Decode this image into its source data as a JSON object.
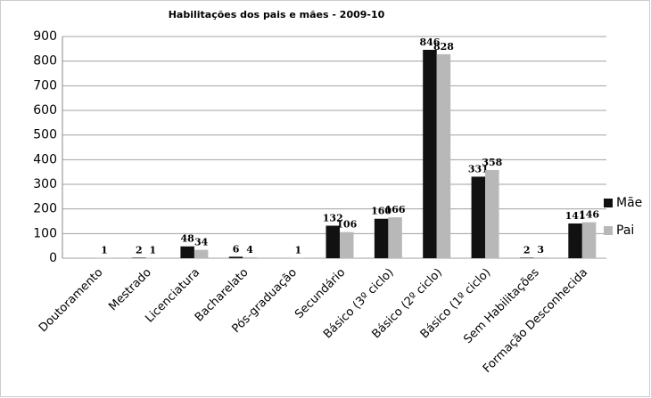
{
  "chart_data": {
    "type": "bar",
    "title": "Habilitações dos pais e mães - 2009-10",
    "categories": [
      "Doutoramento",
      "Mestrado",
      "Licenciatura",
      "Bacharelato",
      "Pós-graduação",
      "Secundário",
      "Básico (3º ciclo)",
      "Básico (2º ciclo)",
      "Básico (1º ciclo)",
      "Sem Habilitações",
      "Formação Desconhecida"
    ],
    "series": [
      {
        "name": "Mãe",
        "color": "#111111",
        "values": [
          null,
          2,
          48,
          6,
          null,
          132,
          160,
          846,
          331,
          2,
          141
        ]
      },
      {
        "name": "Pai",
        "color": "#b8b8b8",
        "values": [
          1,
          1,
          34,
          4,
          1,
          106,
          166,
          828,
          358,
          3,
          146
        ]
      }
    ],
    "ylim": [
      0,
      900
    ],
    "yticks": [
      0,
      100,
      200,
      300,
      400,
      500,
      600,
      700,
      800,
      900
    ],
    "grid": true,
    "legend": "right"
  }
}
